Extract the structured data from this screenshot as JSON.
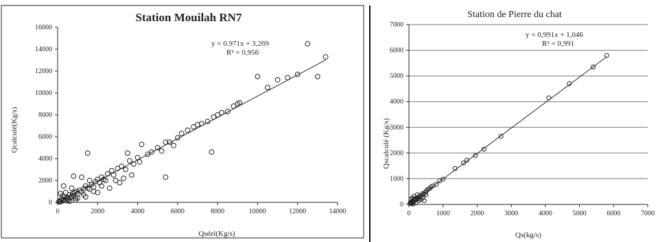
{
  "chart_data": [
    {
      "type": "scatter",
      "title": "Station Mouilah RN7",
      "xlabel": "Qséel(Kg/s)",
      "ylabel": "Qcalculé(Kg/s)",
      "xlim": [
        0,
        14000
      ],
      "ylim": [
        0,
        16000
      ],
      "xticks": [
        "0",
        "2000",
        "4000",
        "6000",
        "8000",
        "10000",
        "12000",
        "14000"
      ],
      "yticks": [
        "0",
        "2000",
        "4000",
        "6000",
        "8000",
        "10000",
        "12000",
        "14000",
        "16000"
      ],
      "grid": false,
      "trendline": {
        "slope": 0.971,
        "intercept": 3.269,
        "x_range": [
          0,
          13400
        ]
      },
      "annotations": [
        "y = 0.971x + 3,269",
        "R² = 0,956"
      ],
      "points": [
        [
          60,
          40
        ],
        [
          100,
          120
        ],
        [
          150,
          60
        ],
        [
          200,
          300
        ],
        [
          250,
          150
        ],
        [
          300,
          250
        ],
        [
          350,
          500
        ],
        [
          400,
          180
        ],
        [
          450,
          350
        ],
        [
          500,
          420
        ],
        [
          550,
          300
        ],
        [
          600,
          700
        ],
        [
          650,
          450
        ],
        [
          700,
          560
        ],
        [
          750,
          800
        ],
        [
          800,
          600
        ],
        [
          850,
          900
        ],
        [
          900,
          380
        ],
        [
          950,
          1000
        ],
        [
          1000,
          800
        ],
        [
          1100,
          1100
        ],
        [
          1200,
          950
        ],
        [
          1300,
          1250
        ],
        [
          1400,
          1500
        ],
        [
          1500,
          1300
        ],
        [
          1600,
          1200
        ],
        [
          1700,
          1650
        ],
        [
          1800,
          1400
        ],
        [
          1900,
          1900
        ],
        [
          2000,
          2100
        ],
        [
          2100,
          1800
        ],
        [
          2200,
          2300
        ],
        [
          2300,
          2100
        ],
        [
          2400,
          2000
        ],
        [
          2500,
          2600
        ],
        [
          2700,
          2900
        ],
        [
          2800,
          2500
        ],
        [
          3000,
          3100
        ],
        [
          3200,
          3300
        ],
        [
          3400,
          3000
        ],
        [
          3500,
          4500
        ],
        [
          3600,
          3800
        ],
        [
          3800,
          3500
        ],
        [
          4000,
          4100
        ],
        [
          4200,
          5300
        ],
        [
          4500,
          4400
        ],
        [
          4700,
          4600
        ],
        [
          5000,
          5000
        ],
        [
          5200,
          4700
        ],
        [
          5400,
          5500
        ],
        [
          5600,
          5500
        ],
        [
          5800,
          5200
        ],
        [
          6000,
          5900
        ],
        [
          6200,
          6300
        ],
        [
          6500,
          6600
        ],
        [
          6800,
          6900
        ],
        [
          7000,
          7100
        ],
        [
          7200,
          7200
        ],
        [
          7500,
          7400
        ],
        [
          7700,
          4600
        ],
        [
          7800,
          7800
        ],
        [
          8000,
          8000
        ],
        [
          8200,
          8200
        ],
        [
          8500,
          8300
        ],
        [
          8800,
          8800
        ],
        [
          9000,
          9000
        ],
        [
          9100,
          9100
        ],
        [
          10000,
          11500
        ],
        [
          10500,
          10500
        ],
        [
          11000,
          11200
        ],
        [
          11500,
          11400
        ],
        [
          12000,
          11700
        ],
        [
          12500,
          14500
        ],
        [
          13000,
          11500
        ],
        [
          13400,
          13300
        ],
        [
          1500,
          4500
        ],
        [
          5400,
          2300
        ],
        [
          800,
          2400
        ],
        [
          300,
          1500
        ],
        [
          1200,
          2300
        ],
        [
          2600,
          1300
        ],
        [
          3300,
          2200
        ],
        [
          4100,
          3700
        ],
        [
          3100,
          1800
        ],
        [
          400,
          900
        ],
        [
          700,
          1300
        ],
        [
          1600,
          2000
        ],
        [
          2900,
          2000
        ],
        [
          150,
          800
        ],
        [
          500,
          150
        ],
        [
          1000,
          400
        ],
        [
          1400,
          500
        ],
        [
          2000,
          900
        ],
        [
          1800,
          1000
        ],
        [
          900,
          200
        ],
        [
          1300,
          700
        ],
        [
          2200,
          1500
        ],
        [
          600,
          100
        ],
        [
          250,
          600
        ],
        [
          3700,
          2500
        ]
      ]
    },
    {
      "type": "scatter",
      "title": "Station de Pierre du chat",
      "xlabel": "Qs(kg/s)",
      "ylabel": "Qscalculé (Kg/s)",
      "xlim": [
        0,
        7000
      ],
      "ylim": [
        0,
        7000
      ],
      "xticks": [
        "0",
        "1000",
        "2000",
        "3000",
        "4000",
        "5000",
        "6000",
        "7000"
      ],
      "yticks": [
        "0",
        "1000",
        "2000",
        "3000",
        "4000",
        "5000",
        "6000",
        "7000"
      ],
      "grid": true,
      "trendline": {
        "slope": 0.991,
        "intercept": 1.046,
        "x_range": [
          0,
          5800
        ]
      },
      "annotations": [
        "y = 0,991x + 1,046",
        "R² = 0,991"
      ],
      "points": [
        [
          30,
          40
        ],
        [
          50,
          80
        ],
        [
          70,
          60
        ],
        [
          90,
          110
        ],
        [
          110,
          140
        ],
        [
          130,
          100
        ],
        [
          150,
          190
        ],
        [
          170,
          150
        ],
        [
          190,
          230
        ],
        [
          210,
          180
        ],
        [
          240,
          260
        ],
        [
          270,
          220
        ],
        [
          300,
          310
        ],
        [
          330,
          290
        ],
        [
          360,
          350
        ],
        [
          400,
          420
        ],
        [
          440,
          400
        ],
        [
          480,
          470
        ],
        [
          520,
          540
        ],
        [
          560,
          590
        ],
        [
          600,
          610
        ],
        [
          650,
          680
        ],
        [
          700,
          720
        ],
        [
          800,
          780
        ],
        [
          900,
          920
        ],
        [
          1000,
          980
        ],
        [
          1350,
          1400
        ],
        [
          1600,
          1620
        ],
        [
          1700,
          1720
        ],
        [
          1950,
          1900
        ],
        [
          2200,
          2150
        ],
        [
          2700,
          2650
        ],
        [
          4100,
          4150
        ],
        [
          4700,
          4700
        ],
        [
          5400,
          5350
        ],
        [
          5800,
          5800
        ],
        [
          60,
          200
        ],
        [
          100,
          250
        ],
        [
          80,
          30
        ],
        [
          120,
          20
        ],
        [
          200,
          60
        ],
        [
          250,
          380
        ],
        [
          300,
          150
        ],
        [
          350,
          200
        ],
        [
          150,
          320
        ],
        [
          400,
          250
        ],
        [
          500,
          380
        ],
        [
          450,
          150
        ]
      ]
    }
  ]
}
